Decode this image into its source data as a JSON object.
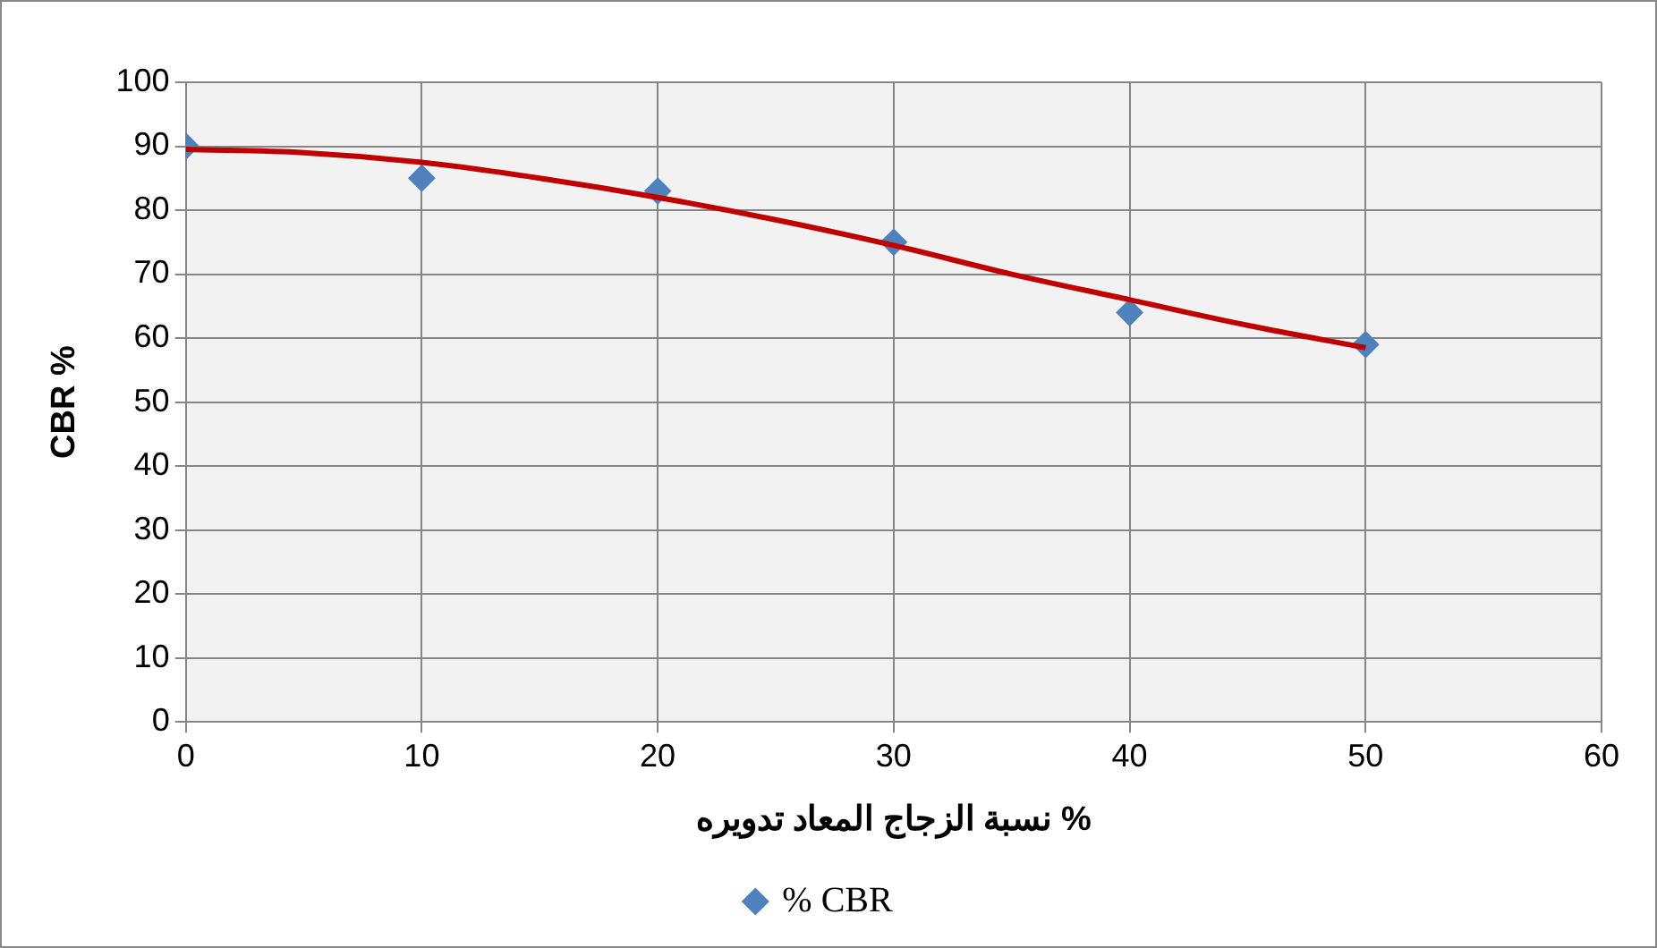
{
  "chart_data": {
    "type": "scatter",
    "xlabel": "نسبة الزجاج المعاد تدويره %",
    "ylabel": "CBR %",
    "xlim": [
      0,
      60
    ],
    "xticks": [
      0,
      10,
      20,
      30,
      40,
      50,
      60
    ],
    "ylim": [
      0,
      100
    ],
    "yticks": [
      0,
      10,
      20,
      30,
      40,
      50,
      60,
      70,
      80,
      90,
      100
    ],
    "grid": true,
    "legend": "bottom",
    "series": [
      {
        "name": "% CBR",
        "marker": "diamond",
        "color": "#4f81bd",
        "x": [
          0,
          10,
          20,
          30,
          40,
          50
        ],
        "values": [
          90,
          85,
          83,
          75,
          64,
          59
        ]
      },
      {
        "type": "line",
        "marker": "none",
        "color": "#c00000",
        "x": [
          0,
          5,
          10,
          15,
          20,
          25,
          30,
          35,
          40,
          45,
          50
        ],
        "values": [
          89.5,
          89,
          87.5,
          85,
          82,
          78.5,
          74.5,
          70,
          66,
          62,
          58.5
        ]
      }
    ]
  }
}
